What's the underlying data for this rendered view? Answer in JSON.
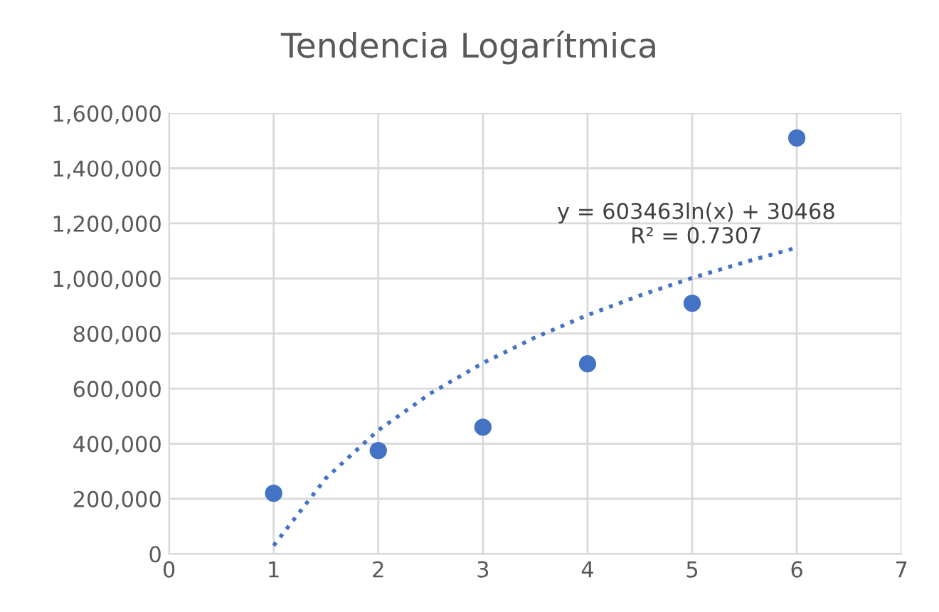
{
  "chart_data": {
    "type": "scatter",
    "title": "Tendencia Logarítmica",
    "series": [
      {
        "color": "#4472c4",
        "marker": "circle",
        "x": [
          1,
          2,
          3,
          4,
          5,
          6
        ],
        "values": [
          220000,
          375000,
          460000,
          690000,
          910000,
          1510000
        ]
      },
      {
        "type": "line",
        "color": "#4472c4",
        "line_style": "dotted",
        "marker": "none",
        "x": [
          1,
          1.5,
          2,
          2.5,
          3,
          3.5,
          4,
          4.5,
          5,
          5.5,
          6
        ],
        "values": [
          30000,
          275000,
          449000,
          583000,
          693000,
          786000,
          867000,
          938000,
          1002000,
          1059000,
          1112000
        ]
      }
    ],
    "annotations": [
      "y = 603463ln(x) + 30468",
      "R² = 0.7307"
    ],
    "xlim": [
      0,
      7
    ],
    "xticks": [
      0,
      1,
      2,
      3,
      4,
      5,
      6,
      7
    ],
    "ylim": [
      0,
      1600000
    ],
    "yticks": [
      {
        "value": 0,
        "label": "0"
      },
      {
        "value": 200000,
        "label": "200,000"
      },
      {
        "value": 400000,
        "label": "400,000"
      },
      {
        "value": 600000,
        "label": "600,000"
      },
      {
        "value": 800000,
        "label": "800,000"
      },
      {
        "value": 1000000,
        "label": "1,000,000"
      },
      {
        "value": 1200000,
        "label": "1,200,000"
      },
      {
        "value": 1400000,
        "label": "1,400,000"
      },
      {
        "value": 1600000,
        "label": "1,600,000"
      }
    ],
    "grid": true
  }
}
